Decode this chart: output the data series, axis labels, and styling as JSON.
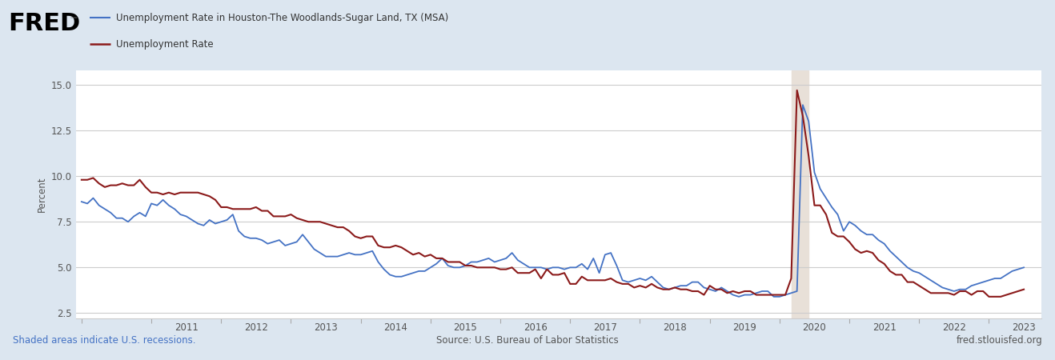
{
  "background_color": "#dce6f0",
  "plot_bg_color": "#ffffff",
  "ylabel": "Percent",
  "ylim": [
    2.2,
    15.8
  ],
  "yticks": [
    2.5,
    5.0,
    7.5,
    10.0,
    12.5,
    15.0
  ],
  "recession_start": 2020.17,
  "recession_end": 2020.42,
  "recession_color": "#e8e0d8",
  "footer_left": "Shaded areas indicate U.S. recessions.",
  "footer_center": "Source: U.S. Bureau of Labor Statistics",
  "footer_right": "fred.stlouisfed.org",
  "houston_color": "#4472c4",
  "national_color": "#8b1a1a",
  "houston_lw": 1.3,
  "national_lw": 1.5,
  "legend_title": "Unemployment Rate in Houston-The Woodlands-Sugar Land, TX (MSA)",
  "legend_line2": "Unemployment Rate",
  "xlim_left": 2009.92,
  "xlim_right": 2023.75,
  "xtick_years": [
    2011,
    2012,
    2013,
    2014,
    2015,
    2016,
    2017,
    2018,
    2019,
    2020,
    2021,
    2022,
    2023
  ],
  "houston_data": {
    "dates": [
      2010.0,
      2010.083,
      2010.167,
      2010.25,
      2010.333,
      2010.417,
      2010.5,
      2010.583,
      2010.667,
      2010.75,
      2010.833,
      2010.917,
      2011.0,
      2011.083,
      2011.167,
      2011.25,
      2011.333,
      2011.417,
      2011.5,
      2011.583,
      2011.667,
      2011.75,
      2011.833,
      2011.917,
      2012.0,
      2012.083,
      2012.167,
      2012.25,
      2012.333,
      2012.417,
      2012.5,
      2012.583,
      2012.667,
      2012.75,
      2012.833,
      2012.917,
      2013.0,
      2013.083,
      2013.167,
      2013.25,
      2013.333,
      2013.417,
      2013.5,
      2013.583,
      2013.667,
      2013.75,
      2013.833,
      2013.917,
      2014.0,
      2014.083,
      2014.167,
      2014.25,
      2014.333,
      2014.417,
      2014.5,
      2014.583,
      2014.667,
      2014.75,
      2014.833,
      2014.917,
      2015.0,
      2015.083,
      2015.167,
      2015.25,
      2015.333,
      2015.417,
      2015.5,
      2015.583,
      2015.667,
      2015.75,
      2015.833,
      2015.917,
      2016.0,
      2016.083,
      2016.167,
      2016.25,
      2016.333,
      2016.417,
      2016.5,
      2016.583,
      2016.667,
      2016.75,
      2016.833,
      2016.917,
      2017.0,
      2017.083,
      2017.167,
      2017.25,
      2017.333,
      2017.417,
      2017.5,
      2017.583,
      2017.667,
      2017.75,
      2017.833,
      2017.917,
      2018.0,
      2018.083,
      2018.167,
      2018.25,
      2018.333,
      2018.417,
      2018.5,
      2018.583,
      2018.667,
      2018.75,
      2018.833,
      2018.917,
      2019.0,
      2019.083,
      2019.167,
      2019.25,
      2019.333,
      2019.417,
      2019.5,
      2019.583,
      2019.667,
      2019.75,
      2019.833,
      2019.917,
      2020.0,
      2020.083,
      2020.167,
      2020.25,
      2020.333,
      2020.417,
      2020.5,
      2020.583,
      2020.667,
      2020.75,
      2020.833,
      2020.917,
      2021.0,
      2021.083,
      2021.167,
      2021.25,
      2021.333,
      2021.417,
      2021.5,
      2021.583,
      2021.667,
      2021.75,
      2021.833,
      2021.917,
      2022.0,
      2022.083,
      2022.167,
      2022.25,
      2022.333,
      2022.417,
      2022.5,
      2022.583,
      2022.667,
      2022.75,
      2022.833,
      2022.917,
      2023.0,
      2023.083,
      2023.167,
      2023.25,
      2023.333,
      2023.417,
      2023.5
    ],
    "values": [
      8.6,
      8.5,
      8.8,
      8.4,
      8.2,
      8.0,
      7.7,
      7.7,
      7.5,
      7.8,
      8.0,
      7.8,
      8.5,
      8.4,
      8.7,
      8.4,
      8.2,
      7.9,
      7.8,
      7.6,
      7.4,
      7.3,
      7.6,
      7.4,
      7.5,
      7.6,
      7.9,
      7.0,
      6.7,
      6.6,
      6.6,
      6.5,
      6.3,
      6.4,
      6.5,
      6.2,
      6.3,
      6.4,
      6.8,
      6.4,
      6.0,
      5.8,
      5.6,
      5.6,
      5.6,
      5.7,
      5.8,
      5.7,
      5.7,
      5.8,
      5.9,
      5.3,
      4.9,
      4.6,
      4.5,
      4.5,
      4.6,
      4.7,
      4.8,
      4.8,
      5.0,
      5.2,
      5.5,
      5.1,
      5.0,
      5.0,
      5.1,
      5.3,
      5.3,
      5.4,
      5.5,
      5.3,
      5.4,
      5.5,
      5.8,
      5.4,
      5.2,
      5.0,
      5.0,
      5.0,
      4.9,
      5.0,
      5.0,
      4.9,
      5.0,
      5.0,
      5.2,
      4.9,
      5.5,
      4.7,
      5.7,
      5.8,
      5.1,
      4.3,
      4.2,
      4.3,
      4.4,
      4.3,
      4.5,
      4.2,
      3.9,
      3.8,
      3.9,
      4.0,
      4.0,
      4.2,
      4.2,
      3.9,
      3.8,
      3.7,
      3.9,
      3.7,
      3.5,
      3.4,
      3.5,
      3.5,
      3.6,
      3.7,
      3.7,
      3.4,
      3.4,
      3.5,
      3.6,
      3.7,
      13.9,
      13.0,
      10.2,
      9.3,
      8.8,
      8.3,
      7.9,
      7.0,
      7.5,
      7.3,
      7.0,
      6.8,
      6.8,
      6.5,
      6.3,
      5.9,
      5.6,
      5.3,
      5.0,
      4.8,
      4.7,
      4.5,
      4.3,
      4.1,
      3.9,
      3.8,
      3.7,
      3.8,
      3.8,
      4.0,
      4.1,
      4.2,
      4.3,
      4.4,
      4.4,
      4.6,
      4.8,
      4.9,
      5.0
    ]
  },
  "national_data": {
    "dates": [
      2010.0,
      2010.083,
      2010.167,
      2010.25,
      2010.333,
      2010.417,
      2010.5,
      2010.583,
      2010.667,
      2010.75,
      2010.833,
      2010.917,
      2011.0,
      2011.083,
      2011.167,
      2011.25,
      2011.333,
      2011.417,
      2011.5,
      2011.583,
      2011.667,
      2011.75,
      2011.833,
      2011.917,
      2012.0,
      2012.083,
      2012.167,
      2012.25,
      2012.333,
      2012.417,
      2012.5,
      2012.583,
      2012.667,
      2012.75,
      2012.833,
      2012.917,
      2013.0,
      2013.083,
      2013.167,
      2013.25,
      2013.333,
      2013.417,
      2013.5,
      2013.583,
      2013.667,
      2013.75,
      2013.833,
      2013.917,
      2014.0,
      2014.083,
      2014.167,
      2014.25,
      2014.333,
      2014.417,
      2014.5,
      2014.583,
      2014.667,
      2014.75,
      2014.833,
      2014.917,
      2015.0,
      2015.083,
      2015.167,
      2015.25,
      2015.333,
      2015.417,
      2015.5,
      2015.583,
      2015.667,
      2015.75,
      2015.833,
      2015.917,
      2016.0,
      2016.083,
      2016.167,
      2016.25,
      2016.333,
      2016.417,
      2016.5,
      2016.583,
      2016.667,
      2016.75,
      2016.833,
      2016.917,
      2017.0,
      2017.083,
      2017.167,
      2017.25,
      2017.333,
      2017.417,
      2017.5,
      2017.583,
      2017.667,
      2017.75,
      2017.833,
      2017.917,
      2018.0,
      2018.083,
      2018.167,
      2018.25,
      2018.333,
      2018.417,
      2018.5,
      2018.583,
      2018.667,
      2018.75,
      2018.833,
      2018.917,
      2019.0,
      2019.083,
      2019.167,
      2019.25,
      2019.333,
      2019.417,
      2019.5,
      2019.583,
      2019.667,
      2019.75,
      2019.833,
      2019.917,
      2020.0,
      2020.083,
      2020.167,
      2020.25,
      2020.333,
      2020.417,
      2020.5,
      2020.583,
      2020.667,
      2020.75,
      2020.833,
      2020.917,
      2021.0,
      2021.083,
      2021.167,
      2021.25,
      2021.333,
      2021.417,
      2021.5,
      2021.583,
      2021.667,
      2021.75,
      2021.833,
      2021.917,
      2022.0,
      2022.083,
      2022.167,
      2022.25,
      2022.333,
      2022.417,
      2022.5,
      2022.583,
      2022.667,
      2022.75,
      2022.833,
      2022.917,
      2023.0,
      2023.083,
      2023.167,
      2023.25,
      2023.333,
      2023.417,
      2023.5
    ],
    "values": [
      9.8,
      9.8,
      9.9,
      9.6,
      9.4,
      9.5,
      9.5,
      9.6,
      9.5,
      9.5,
      9.8,
      9.4,
      9.1,
      9.1,
      9.0,
      9.1,
      9.0,
      9.1,
      9.1,
      9.1,
      9.1,
      9.0,
      8.9,
      8.7,
      8.3,
      8.3,
      8.2,
      8.2,
      8.2,
      8.2,
      8.3,
      8.1,
      8.1,
      7.8,
      7.8,
      7.8,
      7.9,
      7.7,
      7.6,
      7.5,
      7.5,
      7.5,
      7.4,
      7.3,
      7.2,
      7.2,
      7.0,
      6.7,
      6.6,
      6.7,
      6.7,
      6.2,
      6.1,
      6.1,
      6.2,
      6.1,
      5.9,
      5.7,
      5.8,
      5.6,
      5.7,
      5.5,
      5.5,
      5.3,
      5.3,
      5.3,
      5.1,
      5.1,
      5.0,
      5.0,
      5.0,
      5.0,
      4.9,
      4.9,
      5.0,
      4.7,
      4.7,
      4.7,
      4.9,
      4.4,
      4.9,
      4.6,
      4.6,
      4.7,
      4.1,
      4.1,
      4.5,
      4.3,
      4.3,
      4.3,
      4.3,
      4.4,
      4.2,
      4.1,
      4.1,
      3.9,
      4.0,
      3.9,
      4.1,
      3.9,
      3.8,
      3.8,
      3.9,
      3.8,
      3.8,
      3.7,
      3.7,
      3.5,
      4.0,
      3.8,
      3.8,
      3.6,
      3.7,
      3.6,
      3.7,
      3.7,
      3.5,
      3.5,
      3.5,
      3.5,
      3.5,
      3.5,
      4.4,
      14.7,
      13.3,
      11.1,
      8.4,
      8.4,
      7.9,
      6.9,
      6.7,
      6.7,
      6.4,
      6.0,
      5.8,
      5.9,
      5.8,
      5.4,
      5.2,
      4.8,
      4.6,
      4.6,
      4.2,
      4.2,
      4.0,
      3.8,
      3.6,
      3.6,
      3.6,
      3.6,
      3.5,
      3.7,
      3.7,
      3.5,
      3.7,
      3.7,
      3.4,
      3.4,
      3.4,
      3.5,
      3.6,
      3.7,
      3.8
    ]
  }
}
